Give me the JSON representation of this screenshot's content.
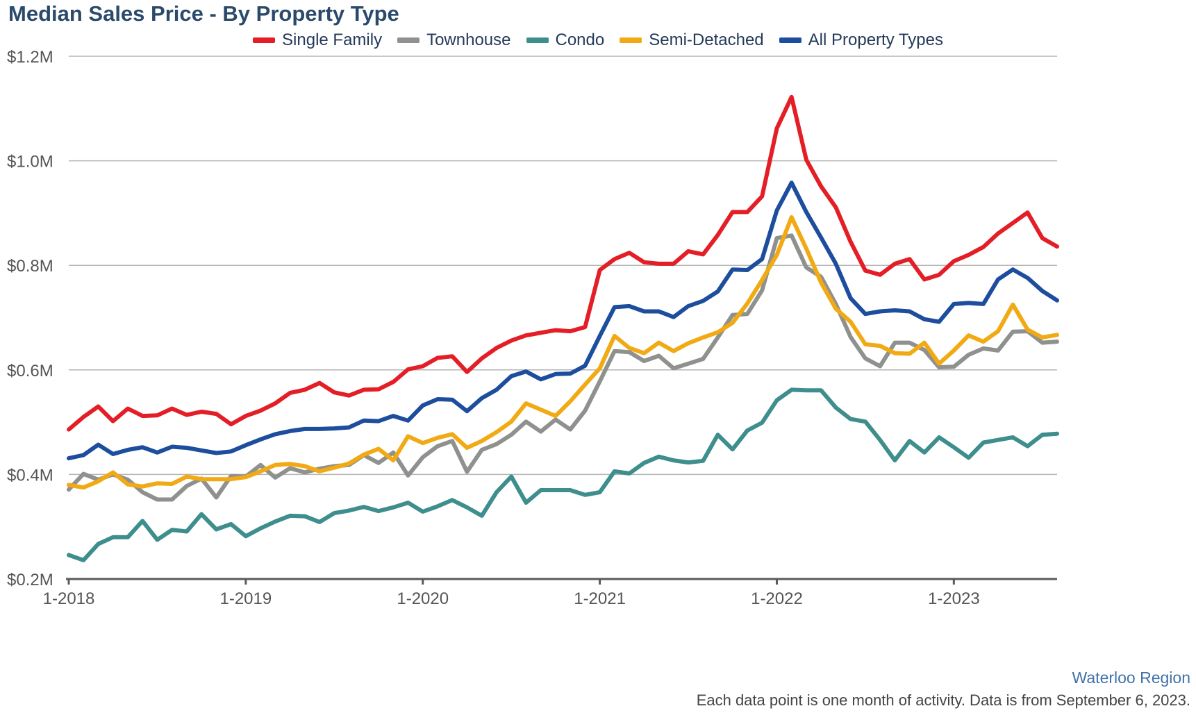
{
  "chart_data": {
    "type": "line",
    "title": "Median Sales Price - By Property Type",
    "subtitle": "",
    "xlabel": "",
    "ylabel": "",
    "ylim": [
      0.2,
      1.2
    ],
    "y_ticks": [
      {
        "value": 0.2,
        "label": "$0.2M"
      },
      {
        "value": 0.4,
        "label": "$0.4M"
      },
      {
        "value": 0.6,
        "label": "$0.6M"
      },
      {
        "value": 0.8,
        "label": "$0.8M"
      },
      {
        "value": 1.0,
        "label": "$1.0M"
      },
      {
        "value": 1.2,
        "label": "$1.2M"
      }
    ],
    "x_range": [
      "2018-01",
      "2023-08"
    ],
    "x_ticks": [
      {
        "value": "2018-01",
        "label": "1-2018"
      },
      {
        "value": "2019-01",
        "label": "1-2019"
      },
      {
        "value": "2020-01",
        "label": "1-2020"
      },
      {
        "value": "2021-01",
        "label": "1-2021"
      },
      {
        "value": "2022-01",
        "label": "1-2022"
      },
      {
        "value": "2023-01",
        "label": "1-2023"
      }
    ],
    "grid": true,
    "legend_position": "top-center",
    "months": [
      "2018-01",
      "2018-02",
      "2018-03",
      "2018-04",
      "2018-05",
      "2018-06",
      "2018-07",
      "2018-08",
      "2018-09",
      "2018-10",
      "2018-11",
      "2018-12",
      "2019-01",
      "2019-02",
      "2019-03",
      "2019-04",
      "2019-05",
      "2019-06",
      "2019-07",
      "2019-08",
      "2019-09",
      "2019-10",
      "2019-11",
      "2019-12",
      "2020-01",
      "2020-02",
      "2020-03",
      "2020-04",
      "2020-05",
      "2020-06",
      "2020-07",
      "2020-08",
      "2020-09",
      "2020-10",
      "2020-11",
      "2020-12",
      "2021-01",
      "2021-02",
      "2021-03",
      "2021-04",
      "2021-05",
      "2021-06",
      "2021-07",
      "2021-08",
      "2021-09",
      "2021-10",
      "2021-11",
      "2021-12",
      "2022-01",
      "2022-02",
      "2022-03",
      "2022-04",
      "2022-05",
      "2022-06",
      "2022-07",
      "2022-08",
      "2022-09",
      "2022-10",
      "2022-11",
      "2022-12",
      "2023-01",
      "2023-02",
      "2023-03",
      "2023-04",
      "2023-05",
      "2023-06",
      "2023-07",
      "2023-08"
    ],
    "series": [
      {
        "name": "Single Family",
        "color": "#e41e26",
        "values": [
          0.486,
          0.51,
          0.53,
          0.502,
          0.526,
          0.512,
          0.513,
          0.526,
          0.514,
          0.52,
          0.516,
          0.496,
          0.512,
          0.522,
          0.536,
          0.556,
          0.562,
          0.575,
          0.557,
          0.551,
          0.562,
          0.563,
          0.577,
          0.601,
          0.607,
          0.623,
          0.626,
          0.596,
          0.622,
          0.642,
          0.656,
          0.666,
          0.671,
          0.676,
          0.674,
          0.682,
          0.791,
          0.812,
          0.824,
          0.806,
          0.803,
          0.803,
          0.827,
          0.821,
          0.858,
          0.902,
          0.902,
          0.932,
          1.062,
          1.122,
          1.002,
          0.951,
          0.911,
          0.845,
          0.79,
          0.782,
          0.803,
          0.812,
          0.773,
          0.782,
          0.808,
          0.82,
          0.835,
          0.861,
          0.881,
          0.901,
          0.852,
          0.836
        ]
      },
      {
        "name": "Townhouse",
        "color": "#8e918e",
        "values": [
          0.371,
          0.401,
          0.39,
          0.4,
          0.39,
          0.366,
          0.352,
          0.352,
          0.378,
          0.392,
          0.356,
          0.397,
          0.396,
          0.418,
          0.394,
          0.412,
          0.404,
          0.411,
          0.416,
          0.418,
          0.437,
          0.422,
          0.442,
          0.398,
          0.433,
          0.454,
          0.464,
          0.405,
          0.447,
          0.458,
          0.476,
          0.501,
          0.482,
          0.505,
          0.486,
          0.522,
          0.578,
          0.636,
          0.634,
          0.617,
          0.627,
          0.603,
          0.612,
          0.621,
          0.662,
          0.705,
          0.707,
          0.752,
          0.852,
          0.857,
          0.796,
          0.778,
          0.726,
          0.663,
          0.622,
          0.607,
          0.652,
          0.652,
          0.638,
          0.605,
          0.606,
          0.629,
          0.641,
          0.637,
          0.673,
          0.674,
          0.652,
          0.654
        ]
      },
      {
        "name": "Condo",
        "color": "#3d8e8c",
        "values": [
          0.246,
          0.236,
          0.267,
          0.28,
          0.28,
          0.311,
          0.275,
          0.294,
          0.291,
          0.324,
          0.295,
          0.305,
          0.282,
          0.297,
          0.31,
          0.321,
          0.32,
          0.309,
          0.326,
          0.331,
          0.338,
          0.33,
          0.337,
          0.346,
          0.329,
          0.339,
          0.351,
          0.337,
          0.321,
          0.366,
          0.396,
          0.346,
          0.37,
          0.37,
          0.37,
          0.361,
          0.366,
          0.406,
          0.402,
          0.422,
          0.434,
          0.427,
          0.423,
          0.426,
          0.476,
          0.448,
          0.484,
          0.499,
          0.542,
          0.562,
          0.561,
          0.561,
          0.528,
          0.506,
          0.501,
          0.466,
          0.427,
          0.464,
          0.442,
          0.471,
          0.452,
          0.432,
          0.461,
          0.466,
          0.471,
          0.454,
          0.476,
          0.478
        ]
      },
      {
        "name": "Semi-Detached",
        "color": "#f1aa14",
        "values": [
          0.38,
          0.375,
          0.387,
          0.404,
          0.381,
          0.377,
          0.383,
          0.382,
          0.396,
          0.391,
          0.391,
          0.391,
          0.395,
          0.406,
          0.418,
          0.42,
          0.416,
          0.406,
          0.413,
          0.421,
          0.438,
          0.449,
          0.427,
          0.473,
          0.46,
          0.47,
          0.477,
          0.451,
          0.464,
          0.481,
          0.501,
          0.536,
          0.524,
          0.512,
          0.54,
          0.572,
          0.603,
          0.665,
          0.642,
          0.632,
          0.652,
          0.636,
          0.651,
          0.662,
          0.672,
          0.69,
          0.727,
          0.772,
          0.82,
          0.892,
          0.832,
          0.767,
          0.717,
          0.692,
          0.649,
          0.646,
          0.632,
          0.631,
          0.652,
          0.612,
          0.637,
          0.666,
          0.654,
          0.674,
          0.725,
          0.677,
          0.662,
          0.667
        ]
      },
      {
        "name": "All Property Types",
        "color": "#1d4d9d",
        "values": [
          0.431,
          0.437,
          0.457,
          0.439,
          0.447,
          0.452,
          0.442,
          0.453,
          0.451,
          0.446,
          0.441,
          0.444,
          0.456,
          0.467,
          0.477,
          0.483,
          0.487,
          0.487,
          0.488,
          0.49,
          0.503,
          0.502,
          0.512,
          0.503,
          0.532,
          0.544,
          0.543,
          0.521,
          0.546,
          0.562,
          0.588,
          0.597,
          0.582,
          0.592,
          0.593,
          0.608,
          0.665,
          0.72,
          0.722,
          0.712,
          0.712,
          0.701,
          0.722,
          0.732,
          0.75,
          0.792,
          0.791,
          0.812,
          0.905,
          0.958,
          0.902,
          0.853,
          0.803,
          0.737,
          0.707,
          0.712,
          0.714,
          0.712,
          0.697,
          0.692,
          0.726,
          0.728,
          0.726,
          0.773,
          0.792,
          0.776,
          0.751,
          0.733
        ]
      }
    ]
  },
  "footer": {
    "region": "Waterloo Region",
    "note": "Each data point is one month of activity. Data is from September 6, 2023."
  }
}
